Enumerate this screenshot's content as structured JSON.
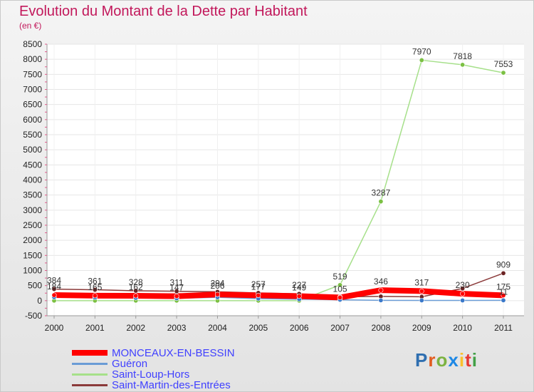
{
  "chart_data": {
    "type": "line",
    "title": "Evolution du Montant de la Dette par Habitant",
    "subtitle": "(en €)",
    "xlabel": "",
    "ylabel": "",
    "ylim": [
      -500,
      8500
    ],
    "yticks": [
      "8500",
      "8000",
      "7500",
      "7000",
      "6500",
      "6000",
      "5500",
      "5000",
      "4500",
      "4000",
      "3500",
      "3000",
      "2500",
      "2000",
      "1500",
      "1000",
      "500",
      "0",
      "-500"
    ],
    "categories": [
      "2000",
      "2001",
      "2002",
      "2003",
      "2004",
      "2005",
      "2006",
      "2007",
      "2008",
      "2009",
      "2010",
      "2011"
    ],
    "series": [
      {
        "name": "MONCEAUX-EN-BESSIN",
        "color": "#ff0000",
        "marker": "#ff0000",
        "values": [
          184,
          165,
          162,
          147,
          206,
          177,
          149,
          105,
          346,
          317,
          230,
          175
        ]
      },
      {
        "name": "Guéron",
        "color": "#6a9cd6",
        "marker": "#3a78c9",
        "values": [
          114,
          105,
          91,
          77,
          111,
          68,
          48,
          29,
          11,
          9,
          7,
          11
        ]
      },
      {
        "name": "Saint-Loup-Hors",
        "color": "#a6e08a",
        "marker": "#7bc043",
        "values": [
          0,
          0,
          0,
          0,
          0,
          0,
          0,
          519,
          3287,
          7970,
          7818,
          7553
        ]
      },
      {
        "name": "Saint-Martin-des-Entrées",
        "color": "#8b3a3a",
        "marker": "#6b2222",
        "values": [
          384,
          361,
          328,
          311,
          294,
          257,
          227,
          126,
          140,
          129,
          404,
          909
        ]
      }
    ],
    "annotations": [
      {
        "series": 3,
        "index": 0,
        "text": "384"
      },
      {
        "series": 3,
        "index": 1,
        "text": "361"
      },
      {
        "series": 3,
        "index": 2,
        "text": "328"
      },
      {
        "series": 3,
        "index": 3,
        "text": "311"
      },
      {
        "series": 3,
        "index": 4,
        "text": "294"
      },
      {
        "series": 3,
        "index": 5,
        "text": "257"
      },
      {
        "series": 3,
        "index": 6,
        "text": "227"
      },
      {
        "series": 3,
        "index": 11,
        "text": "909"
      },
      {
        "series": 0,
        "index": 0,
        "text": "184"
      },
      {
        "series": 0,
        "index": 1,
        "text": "165"
      },
      {
        "series": 0,
        "index": 2,
        "text": "162"
      },
      {
        "series": 0,
        "index": 3,
        "text": "147"
      },
      {
        "series": 0,
        "index": 4,
        "text": "206"
      },
      {
        "series": 0,
        "index": 5,
        "text": "177"
      },
      {
        "series": 0,
        "index": 6,
        "text": "149"
      },
      {
        "series": 0,
        "index": 7,
        "text": "105"
      },
      {
        "series": 0,
        "index": 8,
        "text": "346"
      },
      {
        "series": 0,
        "index": 9,
        "text": "317"
      },
      {
        "series": 0,
        "index": 10,
        "text": "230"
      },
      {
        "series": 0,
        "index": 11,
        "text": "175"
      },
      {
        "series": 2,
        "index": 7,
        "text": "519"
      },
      {
        "series": 2,
        "index": 8,
        "text": "3287"
      },
      {
        "series": 2,
        "index": 9,
        "text": "7970"
      },
      {
        "series": 2,
        "index": 10,
        "text": "7818"
      },
      {
        "series": 2,
        "index": 11,
        "text": "7553"
      },
      {
        "series": 1,
        "index": 11,
        "text": "11"
      }
    ]
  },
  "legend": {
    "items": [
      {
        "label": "MONCEAUX-EN-BESSIN",
        "color": "#ff0000"
      },
      {
        "label": "Guéron",
        "color": "#6a9cd6"
      },
      {
        "label": "Saint-Loup-Hors",
        "color": "#a6e08a"
      },
      {
        "label": "Saint-Martin-des-Entrées",
        "color": "#8b3a3a"
      }
    ]
  },
  "brand": {
    "letters": [
      "P",
      "r",
      "o",
      "x",
      "i",
      "t",
      "i"
    ],
    "colors": [
      "#2f6fb0",
      "#e25c1f",
      "#7cb342",
      "#1e88e5",
      "#fbc02d",
      "#e53935",
      "#43a047"
    ]
  }
}
